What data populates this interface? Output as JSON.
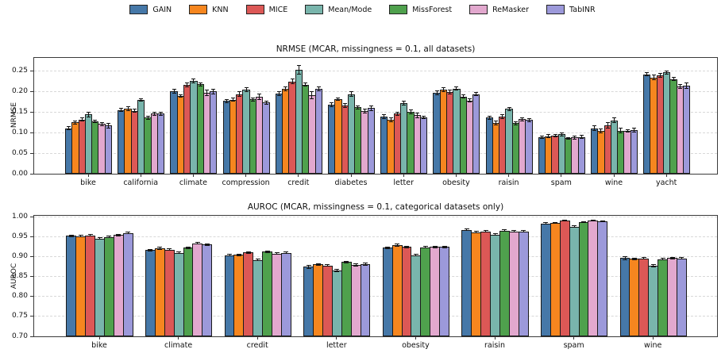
{
  "legend": {
    "entries": [
      {
        "label": "GAIN",
        "color": "#4678A8"
      },
      {
        "label": "KNN",
        "color": "#F6861F"
      },
      {
        "label": "MICE",
        "color": "#DC5856"
      },
      {
        "label": "Mean/Mode",
        "color": "#79B5AC"
      },
      {
        "label": "MissForest",
        "color": "#4FA14D"
      },
      {
        "label": "ReMasker",
        "color": "#E2A8CE"
      },
      {
        "label": "TabINR",
        "color": "#9C99DA"
      }
    ]
  },
  "chart_data": [
    {
      "type": "bar",
      "title": "NRMSE (MCAR, missingness = 0.1, all datasets)",
      "ylabel": "NRMSE",
      "ylim": [
        0,
        0.282
      ],
      "yticks": [
        0.0,
        0.05,
        0.1,
        0.15,
        0.2,
        0.25
      ],
      "ytick_labels": [
        "0.00",
        "0.05",
        "0.10",
        "0.15",
        "0.20",
        "0.25"
      ],
      "grid": "horizontal-dashed",
      "categories": [
        "bike",
        "california",
        "climate",
        "compression",
        "credit",
        "diabetes",
        "letter",
        "obesity",
        "raisin",
        "spam",
        "wine",
        "yacht"
      ],
      "series": [
        {
          "name": "GAIN",
          "values": [
            0.111,
            0.155,
            0.201,
            0.177,
            0.195,
            0.168,
            0.139,
            0.197,
            0.137,
            0.089,
            0.111,
            0.242
          ],
          "errors": [
            0.003,
            0.004,
            0.004,
            0.004,
            0.004,
            0.005,
            0.004,
            0.004,
            0.004,
            0.003,
            0.005,
            0.004
          ]
        },
        {
          "name": "KNN",
          "values": [
            0.125,
            0.158,
            0.19,
            0.18,
            0.207,
            0.181,
            0.131,
            0.204,
            0.123,
            0.091,
            0.105,
            0.234
          ],
          "errors": [
            0.004,
            0.005,
            0.003,
            0.004,
            0.005,
            0.003,
            0.005,
            0.005,
            0.005,
            0.004,
            0.005,
            0.006
          ]
        },
        {
          "name": "MICE",
          "values": [
            0.132,
            0.153,
            0.217,
            0.194,
            0.225,
            0.166,
            0.146,
            0.199,
            0.139,
            0.092,
            0.118,
            0.239
          ],
          "errors": [
            0.004,
            0.004,
            0.005,
            0.005,
            0.006,
            0.005,
            0.004,
            0.004,
            0.004,
            0.003,
            0.006,
            0.005
          ]
        },
        {
          "name": "Mean/Mode",
          "values": [
            0.144,
            0.18,
            0.226,
            0.205,
            0.253,
            0.194,
            0.172,
            0.207,
            0.158,
            0.096,
            0.13,
            0.247
          ],
          "errors": [
            0.005,
            0.003,
            0.004,
            0.005,
            0.01,
            0.005,
            0.005,
            0.004,
            0.004,
            0.004,
            0.006,
            0.004
          ]
        },
        {
          "name": "MissForest",
          "values": [
            0.127,
            0.137,
            0.218,
            0.181,
            0.217,
            0.162,
            0.151,
            0.188,
            0.123,
            0.086,
            0.105,
            0.23
          ],
          "errors": [
            0.003,
            0.004,
            0.004,
            0.004,
            0.004,
            0.004,
            0.005,
            0.004,
            0.004,
            0.002,
            0.006,
            0.004
          ]
        },
        {
          "name": "ReMasker",
          "values": [
            0.121,
            0.146,
            0.197,
            0.188,
            0.191,
            0.153,
            0.142,
            0.178,
            0.133,
            0.088,
            0.105,
            0.212
          ],
          "errors": [
            0.004,
            0.004,
            0.006,
            0.007,
            0.008,
            0.005,
            0.005,
            0.004,
            0.004,
            0.004,
            0.003,
            0.005
          ]
        },
        {
          "name": "TabINR",
          "values": [
            0.117,
            0.146,
            0.2,
            0.173,
            0.206,
            0.16,
            0.137,
            0.194,
            0.131,
            0.089,
            0.107,
            0.214
          ],
          "errors": [
            0.006,
            0.004,
            0.006,
            0.004,
            0.005,
            0.006,
            0.003,
            0.004,
            0.004,
            0.004,
            0.005,
            0.007
          ]
        }
      ]
    },
    {
      "type": "bar",
      "title": "AUROC (MCAR, missingness = 0.1, categorical datasets only)",
      "ylabel": "AUROC",
      "ylim": [
        0.7,
        1.0035
      ],
      "yticks": [
        0.7,
        0.75,
        0.8,
        0.85,
        0.9,
        0.95,
        1.0
      ],
      "ytick_labels": [
        "0.70",
        "0.75",
        "0.80",
        "0.85",
        "0.90",
        "0.95",
        "1.00"
      ],
      "grid": "horizontal-dashed",
      "categories": [
        "bike",
        "climate",
        "credit",
        "letter",
        "obesity",
        "raisin",
        "spam",
        "wine"
      ],
      "series": [
        {
          "name": "GAIN",
          "values": [
            0.953,
            0.917,
            0.904,
            0.875,
            0.923,
            0.968,
            0.984,
            0.897
          ],
          "errors": [
            0.002,
            0.002,
            0.002,
            0.004,
            0.002,
            0.002,
            0.002,
            0.004
          ]
        },
        {
          "name": "KNN",
          "values": [
            0.952,
            0.922,
            0.905,
            0.881,
            0.929,
            0.962,
            0.986,
            0.895
          ],
          "errors": [
            0.002,
            0.003,
            0.002,
            0.002,
            0.003,
            0.002,
            0.001,
            0.002
          ]
        },
        {
          "name": "MICE",
          "values": [
            0.954,
            0.918,
            0.911,
            0.878,
            0.925,
            0.964,
            0.991,
            0.896
          ],
          "errors": [
            0.002,
            0.002,
            0.002,
            0.002,
            0.002,
            0.002,
            0.001,
            0.002
          ]
        },
        {
          "name": "Mean/Mode",
          "values": [
            0.946,
            0.91,
            0.892,
            0.866,
            0.904,
            0.956,
            0.976,
            0.878
          ],
          "errors": [
            0.002,
            0.002,
            0.002,
            0.003,
            0.002,
            0.002,
            0.002,
            0.003
          ]
        },
        {
          "name": "MissForest",
          "values": [
            0.95,
            0.923,
            0.913,
            0.887,
            0.924,
            0.966,
            0.988,
            0.894
          ],
          "errors": [
            0.002,
            0.002,
            0.002,
            0.002,
            0.002,
            0.002,
            0.001,
            0.002
          ]
        },
        {
          "name": "ReMasker",
          "values": [
            0.955,
            0.934,
            0.908,
            0.88,
            0.925,
            0.964,
            0.992,
            0.897
          ],
          "errors": [
            0.002,
            0.002,
            0.002,
            0.003,
            0.002,
            0.002,
            0.001,
            0.002
          ]
        },
        {
          "name": "TabINR",
          "values": [
            0.96,
            0.931,
            0.91,
            0.881,
            0.925,
            0.964,
            0.989,
            0.896
          ],
          "errors": [
            0.002,
            0.002,
            0.002,
            0.003,
            0.002,
            0.002,
            0.001,
            0.002
          ]
        }
      ]
    }
  ]
}
